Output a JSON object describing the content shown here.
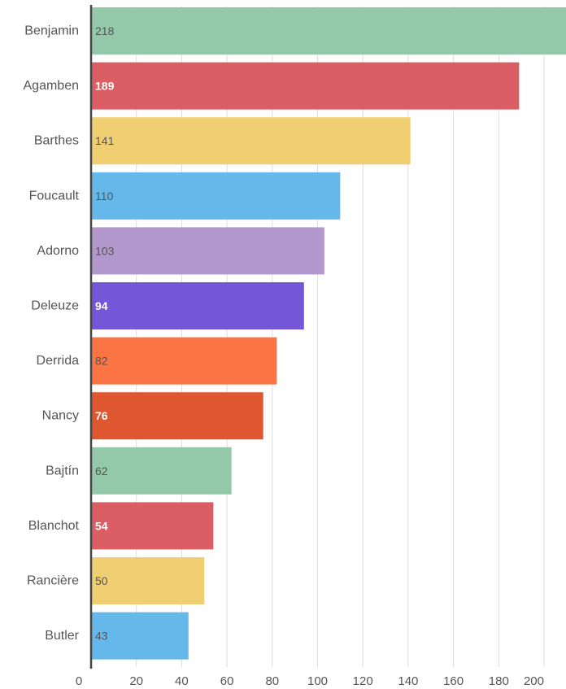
{
  "chart_data": {
    "type": "bar",
    "orientation": "horizontal",
    "title": "",
    "xlabel": "",
    "ylabel": "",
    "categories": [
      "Benjamin",
      "Agamben",
      "Barthes",
      "Foucault",
      "Adorno",
      "Deleuze",
      "Derrida",
      "Nancy",
      "Bajtín",
      "Blanchot",
      "Rancière",
      "Butler"
    ],
    "values": [
      218,
      189,
      141,
      110,
      103,
      94,
      82,
      76,
      62,
      54,
      50,
      43
    ],
    "value_labels": [
      "218",
      "189",
      "141",
      "110",
      "103",
      "94",
      "82",
      "76",
      "62",
      "54",
      "50",
      "43"
    ],
    "colors": [
      "#93c9a8",
      "#dc5e65",
      "#f0ce72",
      "#64b8ea",
      "#b298cd",
      "#7457d8",
      "#fb7444",
      "#df5730",
      "#93c9a8",
      "#dc5e65",
      "#f0ce72",
      "#64b8ea"
    ],
    "label_colors": [
      "#555555",
      "#ffffff",
      "#555555",
      "#555555",
      "#555555",
      "#ffffff",
      "#555555",
      "#ffffff",
      "#555555",
      "#ffffff",
      "#555555",
      "#555555"
    ],
    "label_bold": [
      false,
      true,
      false,
      false,
      false,
      true,
      false,
      true,
      false,
      true,
      false,
      false
    ],
    "xlim": [
      0,
      200
    ],
    "xticks": [
      0,
      20,
      40,
      60,
      80,
      100,
      120,
      140,
      160,
      180,
      200
    ],
    "xtick_labels": [
      "0",
      "20",
      "40",
      "60",
      "80",
      "100",
      "120",
      "140",
      "160",
      "180",
      "200"
    ],
    "grid": true,
    "axis_color": "#444444",
    "grid_color": "#dddddd"
  }
}
